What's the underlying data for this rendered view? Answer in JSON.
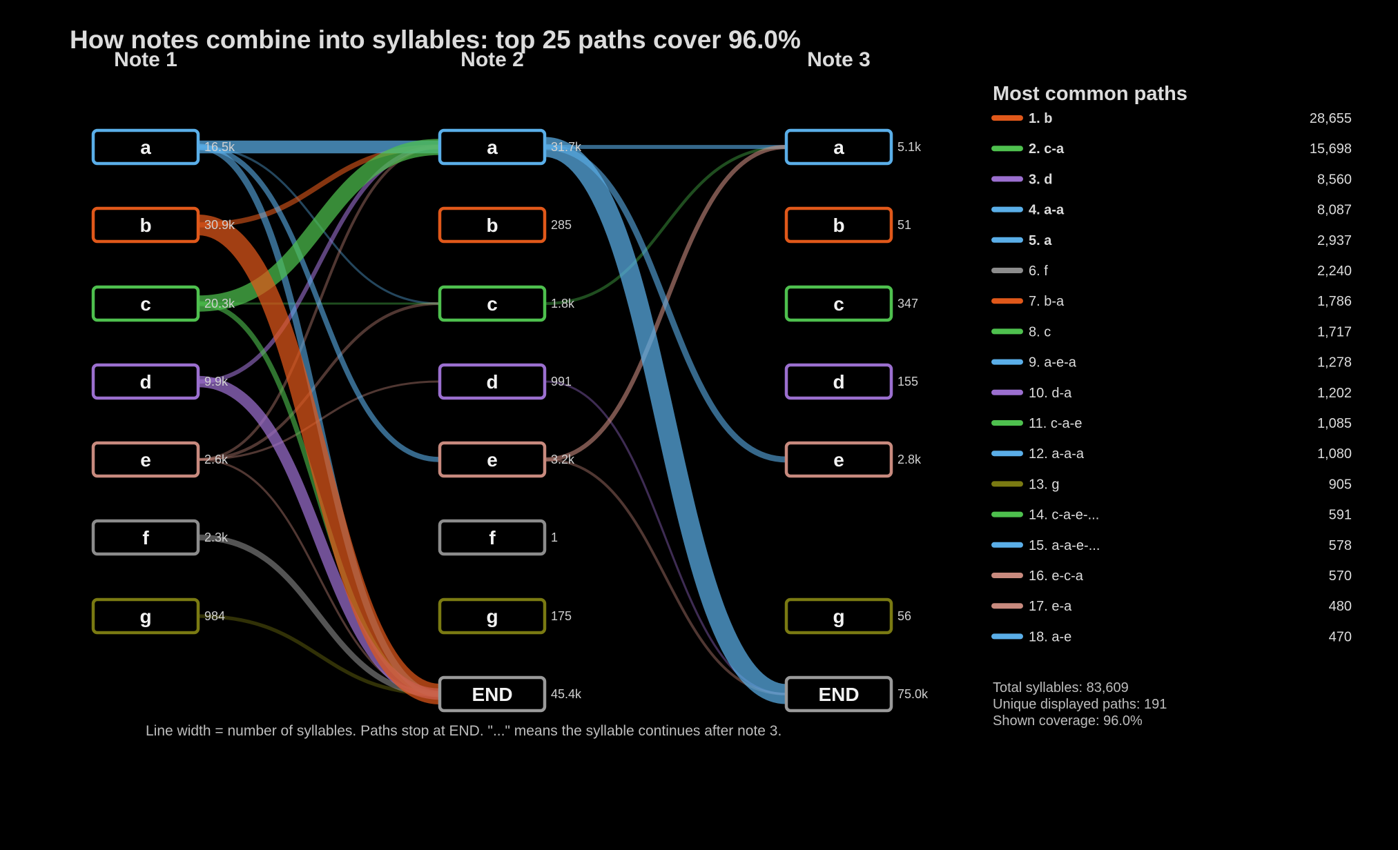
{
  "chart_data": {
    "type": "sankey",
    "title": "How notes combine into syllables: top 25 paths cover 96.0%",
    "columns": [
      "Note 1",
      "Note 2",
      "Note 3"
    ],
    "colors": {
      "a": "#5aaee8",
      "b": "#e0581a",
      "c": "#4ec04e",
      "d": "#9b6fcf",
      "e": "#c88a7e",
      "f": "#8c8c8c",
      "g": "#7a7a12",
      "END": "#9a9a9a"
    },
    "nodes": [
      [
        {
          "id": "a",
          "label": "a",
          "count": "16.5k"
        },
        {
          "id": "b",
          "label": "b",
          "count": "30.9k"
        },
        {
          "id": "c",
          "label": "c",
          "count": "20.3k"
        },
        {
          "id": "d",
          "label": "d",
          "count": "9.9k"
        },
        {
          "id": "e",
          "label": "e",
          "count": "2.6k"
        },
        {
          "id": "f",
          "label": "f",
          "count": "2.3k"
        },
        {
          "id": "g",
          "label": "g",
          "count": "984"
        }
      ],
      [
        {
          "id": "a",
          "label": "a",
          "count": "31.7k"
        },
        {
          "id": "b",
          "label": "b",
          "count": "285"
        },
        {
          "id": "c",
          "label": "c",
          "count": "1.8k"
        },
        {
          "id": "d",
          "label": "d",
          "count": "991"
        },
        {
          "id": "e",
          "label": "e",
          "count": "3.2k"
        },
        {
          "id": "f",
          "label": "f",
          "count": "1"
        },
        {
          "id": "g",
          "label": "g",
          "count": "175"
        },
        {
          "id": "END",
          "label": "END",
          "count": "45.4k"
        }
      ],
      [
        {
          "id": "a",
          "label": "a",
          "count": "5.1k"
        },
        {
          "id": "b",
          "label": "b",
          "count": "51"
        },
        {
          "id": "c",
          "label": "c",
          "count": "347"
        },
        {
          "id": "d",
          "label": "d",
          "count": "155"
        },
        {
          "id": "e",
          "label": "e",
          "count": "2.8k"
        },
        {
          "id": "g",
          "label": "g",
          "count": "56"
        },
        {
          "id": "END",
          "label": "END",
          "count": "75.0k"
        }
      ]
    ],
    "links": [
      {
        "col": 0,
        "from": "b",
        "to": "END",
        "value": 28655
      },
      {
        "col": 0,
        "from": "c",
        "to": "a",
        "value": 17500
      },
      {
        "col": 0,
        "from": "a",
        "to": "a",
        "value": 11000
      },
      {
        "col": 0,
        "from": "d",
        "to": "END",
        "value": 8560
      },
      {
        "col": 0,
        "from": "a",
        "to": "END",
        "value": 2937
      },
      {
        "col": 0,
        "from": "f",
        "to": "END",
        "value": 2240
      },
      {
        "col": 0,
        "from": "b",
        "to": "a",
        "value": 1786
      },
      {
        "col": 0,
        "from": "c",
        "to": "END",
        "value": 1717
      },
      {
        "col": 0,
        "from": "a",
        "to": "e",
        "value": 1800
      },
      {
        "col": 0,
        "from": "d",
        "to": "a",
        "value": 1202
      },
      {
        "col": 0,
        "from": "g",
        "to": "END",
        "value": 905
      },
      {
        "col": 0,
        "from": "e",
        "to": "c",
        "value": 570
      },
      {
        "col": 0,
        "from": "e",
        "to": "a",
        "value": 480
      },
      {
        "col": 0,
        "from": "a",
        "to": "c",
        "value": 300
      },
      {
        "col": 0,
        "from": "c",
        "to": "c",
        "value": 300
      },
      {
        "col": 0,
        "from": "e",
        "to": "d",
        "value": 300
      },
      {
        "col": 0,
        "from": "e",
        "to": "END",
        "value": 300
      },
      {
        "col": 1,
        "from": "a",
        "to": "END",
        "value": 27000
      },
      {
        "col": 1,
        "from": "a",
        "to": "e",
        "value": 2400
      },
      {
        "col": 1,
        "from": "a",
        "to": "a",
        "value": 1080
      },
      {
        "col": 1,
        "from": "e",
        "to": "a",
        "value": 1278
      },
      {
        "col": 1,
        "from": "c",
        "to": "a",
        "value": 570
      },
      {
        "col": 1,
        "from": "e",
        "to": "END",
        "value": 470
      },
      {
        "col": 1,
        "from": "d",
        "to": "END",
        "value": 300
      }
    ],
    "footnote": "Line width = number of syllables. Paths stop at END. \"...\" means the syllable continues after note 3."
  },
  "legend": {
    "title": "Most common paths",
    "items": [
      {
        "label": "1. b",
        "value": "28,655",
        "color": "#e0581a",
        "bold": true
      },
      {
        "label": "2. c-a",
        "value": "15,698",
        "color": "#4ec04e",
        "bold": true
      },
      {
        "label": "3. d",
        "value": "8,560",
        "color": "#9b6fcf",
        "bold": true
      },
      {
        "label": "4. a-a",
        "value": "8,087",
        "color": "#5aaee8",
        "bold": true
      },
      {
        "label": "5. a",
        "value": "2,937",
        "color": "#5aaee8",
        "bold": true
      },
      {
        "label": "6. f",
        "value": "2,240",
        "color": "#8c8c8c",
        "bold": false
      },
      {
        "label": "7. b-a",
        "value": "1,786",
        "color": "#e0581a",
        "bold": false
      },
      {
        "label": "8. c",
        "value": "1,717",
        "color": "#4ec04e",
        "bold": false
      },
      {
        "label": "9. a-e-a",
        "value": "1,278",
        "color": "#5aaee8",
        "bold": false
      },
      {
        "label": "10. d-a",
        "value": "1,202",
        "color": "#9b6fcf",
        "bold": false
      },
      {
        "label": "11. c-a-e",
        "value": "1,085",
        "color": "#4ec04e",
        "bold": false
      },
      {
        "label": "12. a-a-a",
        "value": "1,080",
        "color": "#5aaee8",
        "bold": false
      },
      {
        "label": "13. g",
        "value": "905",
        "color": "#7a7a12",
        "bold": false
      },
      {
        "label": "14. c-a-e-...",
        "value": "591",
        "color": "#4ec04e",
        "bold": false
      },
      {
        "label": "15. a-a-e-...",
        "value": "578",
        "color": "#5aaee8",
        "bold": false
      },
      {
        "label": "16. e-c-a",
        "value": "570",
        "color": "#c88a7e",
        "bold": false
      },
      {
        "label": "17. e-a",
        "value": "480",
        "color": "#c88a7e",
        "bold": false
      },
      {
        "label": "18. a-e",
        "value": "470",
        "color": "#5aaee8",
        "bold": false
      }
    ]
  },
  "stats": {
    "total": "Total syllables: 83,609",
    "unique": "Unique displayed paths: 191",
    "coverage": "Shown coverage: 96.0%"
  }
}
